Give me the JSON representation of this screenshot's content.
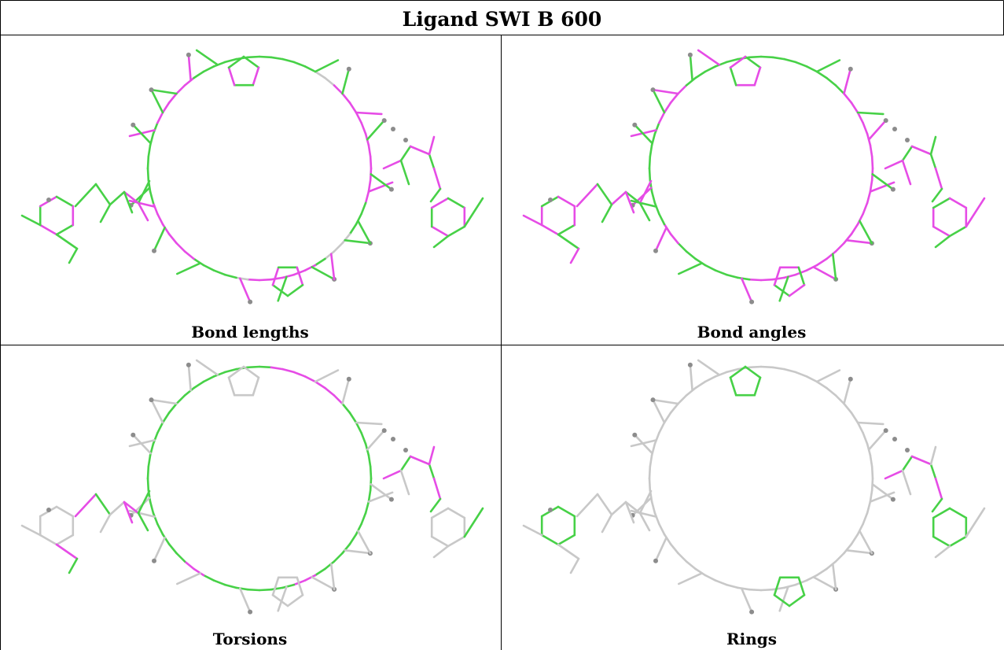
{
  "title": "Ligand SWI B 600",
  "colors": {
    "pass": "#47d147",
    "outlier": "#e64ce6",
    "neutral": "#c8c8c8",
    "hydrogen": "#8c8c8c",
    "grid": "#000000"
  },
  "panels": [
    {
      "caption": "Bond lengths",
      "mode": "lengths"
    },
    {
      "caption": "Bond angles",
      "mode": "angles"
    },
    {
      "caption": "Torsions",
      "mode": "torsions"
    },
    {
      "caption": "Rings",
      "mode": "rings"
    }
  ]
}
